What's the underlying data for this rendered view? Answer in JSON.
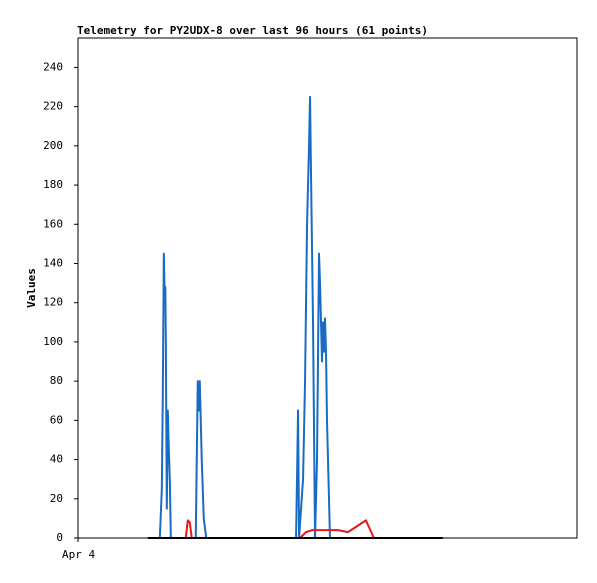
{
  "chart_data": {
    "type": "line",
    "title": "Telemetry for PY2UDX-8 over last 96 hours (61 points)",
    "y_label": "Values",
    "xlim": [
      0,
      100
    ],
    "xticks": [
      {
        "value": 0,
        "label": "Apr 4"
      }
    ],
    "ylim": [
      0,
      255
    ],
    "yticks": [
      0,
      20,
      40,
      60,
      80,
      100,
      120,
      140,
      160,
      180,
      200,
      220,
      240
    ],
    "grid": false,
    "series": [
      {
        "color": "#1a6bc4",
        "x": [
          14.0,
          16.4,
          16.8,
          17.0,
          17.2,
          17.4,
          17.5,
          17.6,
          17.8,
          18.0,
          18.2,
          18.4,
          18.6,
          23.6,
          24.0,
          24.2,
          24.4,
          24.8,
          25.2,
          25.7,
          43.7,
          43.9,
          44.1,
          44.3,
          45.1,
          45.5,
          45.9,
          46.3,
          46.5,
          46.7,
          47.1,
          47.5,
          47.9,
          48.3,
          48.5,
          48.9,
          49.1,
          49.3,
          49.5,
          49.7,
          49.9,
          50.5,
          73.1
        ],
        "values": [
          0,
          0,
          25,
          75,
          145,
          120,
          128,
          100,
          15,
          65,
          45,
          30,
          0,
          0,
          80,
          65,
          80,
          40,
          10,
          0,
          0,
          32,
          65,
          0,
          30,
          80,
          160,
          200,
          225,
          185,
          110,
          0,
          40,
          145,
          130,
          90,
          110,
          95,
          112,
          95,
          60,
          0,
          0
        ]
      },
      {
        "color": "#e31a1c",
        "x": [
          14.0,
          21.6,
          22.0,
          22.4,
          22.8,
          44.5,
          45.7,
          46.9,
          52.1,
          54.1,
          57.7,
          59.3,
          73.1
        ],
        "values": [
          0,
          0,
          9,
          8,
          0,
          0,
          3,
          4,
          4,
          3,
          9,
          0,
          0
        ]
      },
      {
        "color": "#000000",
        "x": [
          14.0,
          73.1
        ],
        "values": [
          0,
          0
        ]
      }
    ]
  }
}
